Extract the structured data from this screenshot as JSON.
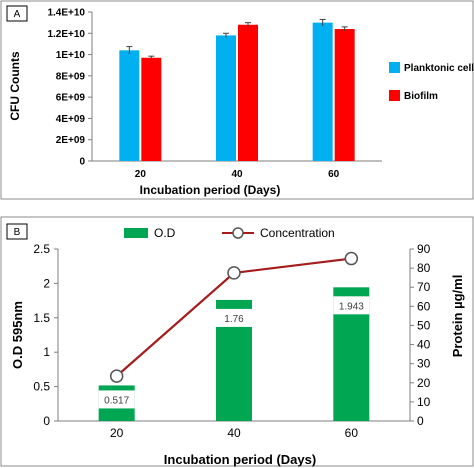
{
  "chart_data": [
    {
      "panel": "A",
      "type": "bar",
      "categories": [
        "20",
        "40",
        "60"
      ],
      "series": [
        {
          "name": "Planktonic cells",
          "color": "#00b0f0",
          "values": [
            10400000000.0,
            11800000000.0,
            13000000000.0
          ],
          "errors": [
            350000000.0,
            200000000.0,
            300000000.0
          ]
        },
        {
          "name": "Biofilm",
          "color": "#ff0000",
          "values": [
            9700000000.0,
            12800000000.0,
            12400000000.0
          ],
          "errors": [
            150000000.0,
            200000000.0,
            200000000.0
          ]
        }
      ],
      "xlabel": "Incubation period (Days)",
      "ylabel": "CFU Counts",
      "ylim": [
        0,
        14000000000.0
      ],
      "yticks": [
        "0",
        "2E+09",
        "4E+09",
        "6E+09",
        "8E+09",
        "1E+10",
        "1.2E+10",
        "1.4E+10"
      ],
      "legend_position": "right",
      "grid": false
    },
    {
      "panel": "B",
      "type": "bar+line",
      "categories": [
        "20",
        "40",
        "60"
      ],
      "bar_series": {
        "name": "O.D",
        "color": "#00a651",
        "values": [
          0.517,
          1.76,
          1.943
        ],
        "labels": [
          "0.517",
          "1.76",
          "1.943"
        ]
      },
      "line_series": {
        "name": "Concentration",
        "color": "#a51c1c",
        "values": [
          23.5,
          77.5,
          85
        ]
      },
      "xlabel": "Incubation period (Days)",
      "ylabel_left": "O.D 595nm",
      "ylabel_right": "Protein µg/ml",
      "ylim_left": [
        0,
        2.5
      ],
      "ylim_right": [
        0,
        90
      ],
      "yticks_left": [
        "0",
        "0.5",
        "1",
        "1.5",
        "2",
        "2.5"
      ],
      "yticks_right": [
        "0",
        "10",
        "20",
        "30",
        "40",
        "50",
        "60",
        "70",
        "80",
        "90"
      ],
      "legend_position": "top",
      "grid": false
    }
  ]
}
